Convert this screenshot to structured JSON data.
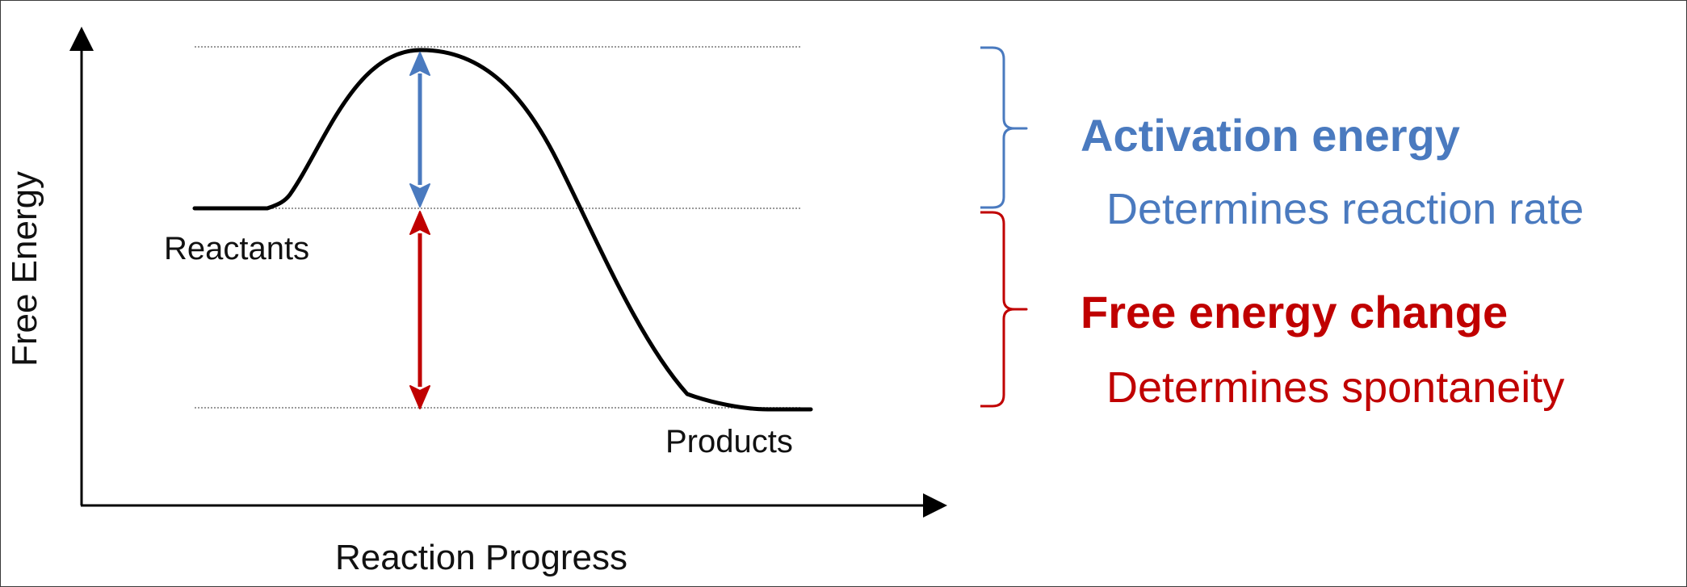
{
  "axes": {
    "x_label": "Reaction Progress",
    "y_label": "Free Energy"
  },
  "states": {
    "reactants": "Reactants",
    "products": "Products"
  },
  "legend": {
    "activation": {
      "title": "Activation energy",
      "description": "Determines reaction rate"
    },
    "free_energy": {
      "title": "Free energy change",
      "description": "Determines spontaneity"
    }
  },
  "colors": {
    "activation": "#4a7abf",
    "free_energy": "#c00000",
    "curve": "#000000",
    "guide_lines": "#9a9a9a"
  }
}
